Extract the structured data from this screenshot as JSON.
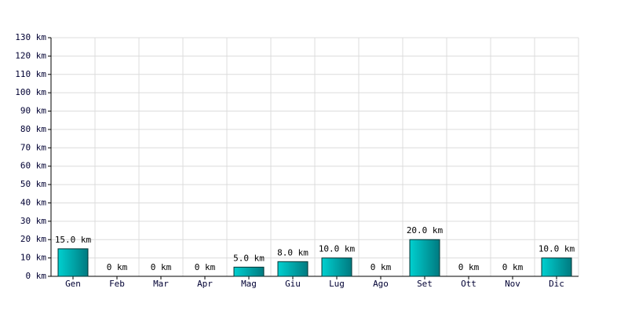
{
  "chart_data": {
    "type": "bar",
    "categories": [
      "Gen",
      "Feb",
      "Mar",
      "Apr",
      "Mag",
      "Giu",
      "Lug",
      "Ago",
      "Set",
      "Ott",
      "Nov",
      "Dic"
    ],
    "values": [
      15,
      0,
      0,
      0,
      5,
      8,
      10,
      0,
      20,
      0,
      0,
      10
    ],
    "value_labels": [
      "15.0 km",
      "0 km",
      "0 km",
      "0 km",
      "5.0 km",
      "8.0 km",
      "10.0 km",
      "0 km",
      "20.0 km",
      "0 km",
      "0 km",
      "10.0 km"
    ],
    "color": "#00d0d0",
    "ylim": [
      0,
      130
    ],
    "yticks": [
      {
        "value": 0,
        "label": "0 km"
      },
      {
        "value": 10,
        "label": "10 km"
      },
      {
        "value": 20,
        "label": "20 km"
      },
      {
        "value": 30,
        "label": "30 km"
      },
      {
        "value": 40,
        "label": "40 km"
      },
      {
        "value": 50,
        "label": "50 km"
      },
      {
        "value": 60,
        "label": "60 km"
      },
      {
        "value": 70,
        "label": "70 km"
      },
      {
        "value": 80,
        "label": "80 km"
      },
      {
        "value": 90,
        "label": "90 km"
      },
      {
        "value": 100,
        "label": "100 km"
      },
      {
        "value": 110,
        "label": "110 km"
      },
      {
        "value": 120,
        "label": "120 km"
      },
      {
        "value": 130,
        "label": "130 km"
      }
    ],
    "grid": true
  }
}
